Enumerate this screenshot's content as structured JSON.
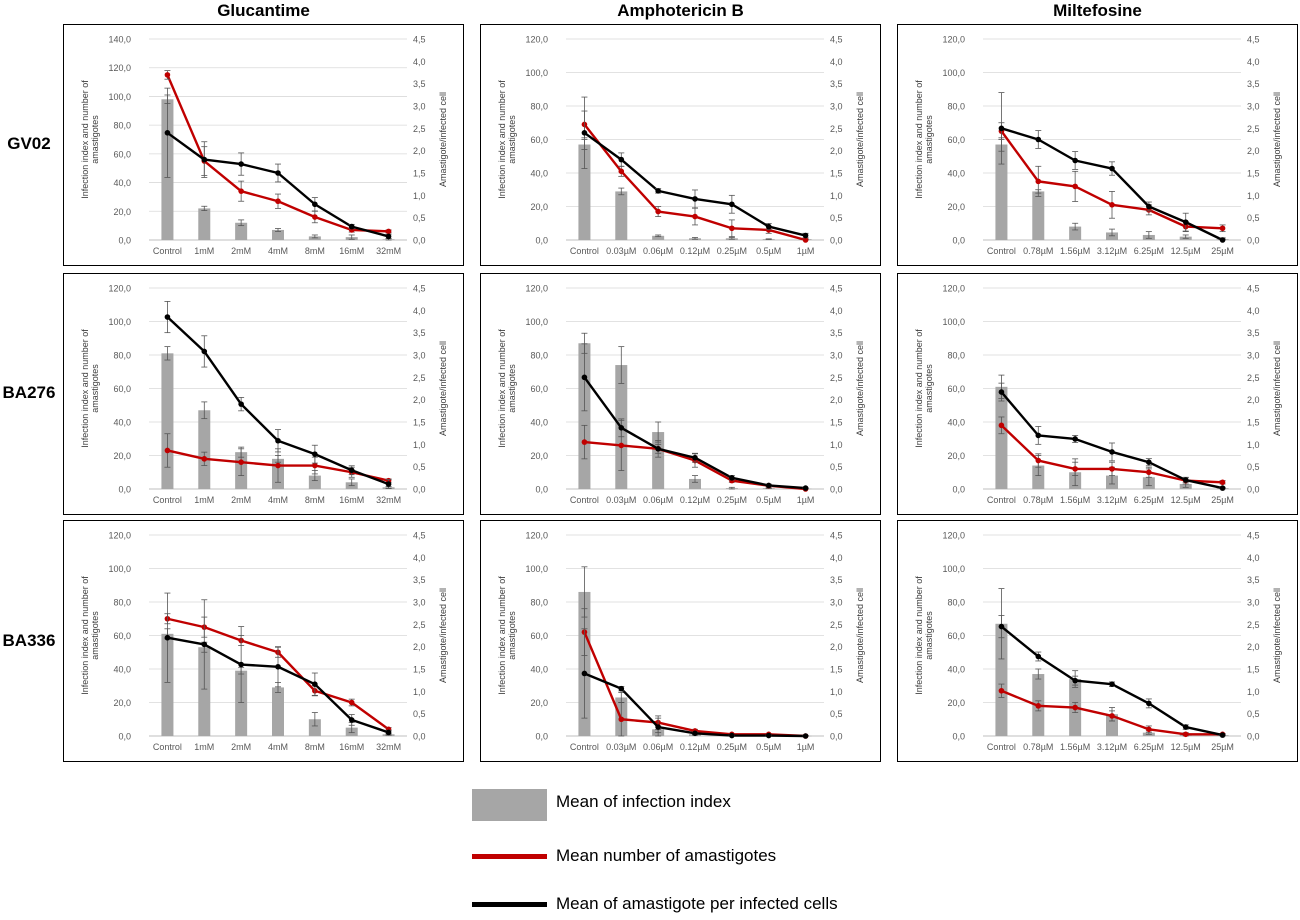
{
  "columns": [
    "Glucantime",
    "Amphotericin B",
    "Miltefosine"
  ],
  "rows": [
    "GV02",
    "BA276",
    "BA336"
  ],
  "axis_labels": {
    "left_line1": "Infection index and number of",
    "left_line2": "amastigotes",
    "right": "Amastigote/infected cell"
  },
  "left_ticks": [
    "0,0",
    "20,0",
    "40,0",
    "60,0",
    "80,0",
    "100,0",
    "120,0",
    "140,0"
  ],
  "right_ticks": [
    "0,0",
    "0,5",
    "1,0",
    "1,5",
    "2,0",
    "2,5",
    "3,0",
    "3,5",
    "4,0",
    "4,5"
  ],
  "legend": {
    "infection_index": "Mean of infection index",
    "amastigotes": "Mean number of amastigotes",
    "per_cell": "Mean of amastigote per infected cells"
  },
  "colors": {
    "bar": "#a6a6a6",
    "red": "#c00000",
    "black": "#000000",
    "grid": "#d9d9d9",
    "tick_text": "#595959"
  },
  "chart_data": [
    {
      "type": "bar",
      "row": "GV02",
      "column": "Glucantime",
      "categories": [
        "Control",
        "1mM",
        "2mM",
        "4mM",
        "8mM",
        "16mM",
        "32mM"
      ],
      "ylim": [
        0,
        140
      ],
      "y2lim": [
        0,
        4.5
      ],
      "series": [
        {
          "name": "Mean of infection index",
          "kind": "bar",
          "axis": "left",
          "values": [
            98,
            22,
            12,
            7,
            2.5,
            2,
            0.5
          ],
          "errors": [
            3,
            1.5,
            2,
            1,
            1,
            1.5,
            0.5
          ]
        },
        {
          "name": "Mean number of amastigotes",
          "kind": "line",
          "axis": "left",
          "values": [
            115,
            55,
            34,
            27,
            16,
            7,
            6
          ],
          "errors": [
            3,
            10,
            7,
            5,
            4,
            1.5,
            1
          ]
        },
        {
          "name": "Mean of amastigote per infected cells",
          "kind": "line",
          "axis": "right",
          "values": [
            2.4,
            1.8,
            1.7,
            1.5,
            0.8,
            0.3,
            0.08
          ],
          "errors": [
            1,
            0.4,
            0.25,
            0.2,
            0.15,
            0.05,
            0.05
          ]
        }
      ]
    },
    {
      "type": "bar",
      "row": "GV02",
      "column": "Amphotericin B",
      "categories": [
        "Control",
        "0.03µM",
        "0.06µM",
        "0.12µM",
        "0.25µM",
        "0.5µM",
        "1µM"
      ],
      "ylim": [
        0,
        120
      ],
      "y2lim": [
        0,
        4.5
      ],
      "series": [
        {
          "name": "Mean of infection index",
          "kind": "bar",
          "axis": "left",
          "values": [
            57,
            29,
            2.5,
            1,
            1,
            0.5,
            0.5
          ],
          "errors": [
            3,
            2,
            0.5,
            0.5,
            0.5,
            0.2,
            0.2
          ]
        },
        {
          "name": "Mean number of amastigotes",
          "kind": "line",
          "axis": "left",
          "values": [
            69,
            41,
            17,
            14,
            7,
            6,
            0
          ],
          "errors": [
            8,
            3,
            3,
            5,
            5,
            2,
            0.5
          ]
        },
        {
          "name": "Mean of amastigote per infected cells",
          "kind": "line",
          "axis": "right",
          "values": [
            2.4,
            1.8,
            1.1,
            0.92,
            0.8,
            0.3,
            0.1
          ],
          "errors": [
            0.8,
            0.15,
            0.05,
            0.2,
            0.2,
            0.07,
            0.05
          ]
        }
      ]
    },
    {
      "type": "bar",
      "row": "GV02",
      "column": "Miltefosine",
      "categories": [
        "Control",
        "0.78µM",
        "1.56µM",
        "3.12µM",
        "6.25µM",
        "12.5µM",
        "25µM"
      ],
      "ylim": [
        0,
        120
      ],
      "y2lim": [
        0,
        4.5
      ],
      "series": [
        {
          "name": "Mean of infection index",
          "kind": "bar",
          "axis": "left",
          "values": [
            57,
            29,
            8,
            4.5,
            3,
            2,
            0.5
          ],
          "errors": [
            4,
            1,
            2,
            2,
            2,
            1,
            0.2
          ]
        },
        {
          "name": "Mean number of amastigotes",
          "kind": "line",
          "axis": "left",
          "values": [
            65,
            35,
            32,
            21,
            18,
            8,
            7
          ],
          "errors": [
            5,
            9,
            9,
            8,
            3,
            3,
            2
          ]
        },
        {
          "name": "Mean of amastigote per infected cells",
          "kind": "line",
          "axis": "right",
          "values": [
            2.5,
            2.25,
            1.78,
            1.6,
            0.75,
            0.4,
            0
          ],
          "errors": [
            0.8,
            0.2,
            0.2,
            0.15,
            0.1,
            0.2,
            0.05
          ]
        }
      ]
    },
    {
      "type": "bar",
      "row": "BA276",
      "column": "Glucantime",
      "categories": [
        "Control",
        "1mM",
        "2mM",
        "4mM",
        "8mM",
        "16mM",
        "32mM"
      ],
      "ylim": [
        0,
        120
      ],
      "y2lim": [
        0,
        4.5
      ],
      "series": [
        {
          "name": "Mean of infection index",
          "kind": "bar",
          "axis": "left",
          "values": [
            81,
            47,
            22,
            18,
            8,
            4,
            1
          ],
          "errors": [
            4,
            5,
            3,
            2,
            3,
            2,
            0.5
          ]
        },
        {
          "name": "Mean number of amastigotes",
          "kind": "line",
          "axis": "left",
          "values": [
            23,
            18,
            16,
            14,
            14,
            10,
            5
          ],
          "errors": [
            10,
            4,
            8,
            10,
            5,
            3,
            1
          ]
        },
        {
          "name": "Mean of amastigote per infected cells",
          "kind": "line",
          "axis": "right",
          "values": [
            3.85,
            3.08,
            1.9,
            1.08,
            0.78,
            0.42,
            0.11
          ],
          "errors": [
            0.35,
            0.35,
            0.15,
            0.25,
            0.2,
            0.1,
            0.1
          ]
        }
      ]
    },
    {
      "type": "bar",
      "row": "BA276",
      "column": "Amphotericin B",
      "categories": [
        "Control",
        "0.03µM",
        "0.06µM",
        "0.12µM",
        "0.25µM",
        "0.5µM",
        "1µM"
      ],
      "ylim": [
        0,
        120
      ],
      "y2lim": [
        0,
        4.5
      ],
      "series": [
        {
          "name": "Mean of infection index",
          "kind": "bar",
          "axis": "left",
          "values": [
            87,
            74,
            34,
            6,
            0.5,
            0.5,
            0.2
          ],
          "errors": [
            6,
            11,
            6,
            2,
            0.5,
            0.2,
            0.1
          ]
        },
        {
          "name": "Mean number of amastigotes",
          "kind": "line",
          "axis": "left",
          "values": [
            28,
            26,
            24,
            17,
            5,
            2,
            0
          ],
          "errors": [
            10,
            15,
            5,
            4,
            1,
            0.5,
            0.2
          ]
        },
        {
          "name": "Mean of amastigote per infected cells",
          "kind": "line",
          "axis": "right",
          "values": [
            2.5,
            1.37,
            0.9,
            0.7,
            0.25,
            0.08,
            0.02
          ],
          "errors": [
            0.75,
            0.2,
            0.1,
            0.1,
            0.05,
            0.03,
            0.01
          ]
        }
      ]
    },
    {
      "type": "bar",
      "row": "BA276",
      "column": "Miltefosine",
      "categories": [
        "Control",
        "0.78µM",
        "1.56µM",
        "3.12µM",
        "6.25µM",
        "12.5µM",
        "25µM"
      ],
      "ylim": [
        0,
        120
      ],
      "y2lim": [
        0,
        4.5
      ],
      "series": [
        {
          "name": "Mean of infection index",
          "kind": "bar",
          "axis": "left",
          "values": [
            61,
            14,
            10,
            8,
            7,
            3,
            0.5
          ],
          "errors": [
            7,
            6,
            8,
            5,
            5,
            2,
            0.2
          ]
        },
        {
          "name": "Mean number of amastigotes",
          "kind": "line",
          "axis": "left",
          "values": [
            38,
            17,
            12,
            12,
            10,
            5,
            4
          ],
          "errors": [
            5,
            4,
            4,
            4,
            3,
            2,
            1
          ]
        },
        {
          "name": "Mean of amastigote per infected cells",
          "kind": "line",
          "axis": "right",
          "values": [
            2.17,
            1.2,
            1.12,
            0.83,
            0.6,
            0.2,
            0.02
          ],
          "errors": [
            0.2,
            0.2,
            0.08,
            0.2,
            0.08,
            0.05,
            0.02
          ]
        }
      ]
    },
    {
      "type": "bar",
      "row": "BA336",
      "column": "Glucantime",
      "categories": [
        "Control",
        "1mM",
        "2mM",
        "4mM",
        "8mM",
        "16mM",
        "32mM"
      ],
      "ylim": [
        0,
        120
      ],
      "y2lim": [
        0,
        4.5
      ],
      "series": [
        {
          "name": "Mean of infection index",
          "kind": "bar",
          "axis": "left",
          "values": [
            61,
            53,
            39,
            29,
            10,
            5,
            1
          ],
          "errors": [
            3,
            3,
            2,
            3,
            4,
            3,
            0.5
          ]
        },
        {
          "name": "Mean number of amastigotes",
          "kind": "line",
          "axis": "left",
          "values": [
            70,
            65,
            57,
            50,
            27,
            20,
            4
          ],
          "errors": [
            3,
            6,
            3,
            3,
            3,
            2,
            1
          ]
        },
        {
          "name": "Mean of amastigote per infected cells",
          "kind": "line",
          "axis": "right",
          "values": [
            2.2,
            2.05,
            1.6,
            1.55,
            1.16,
            0.36,
            0.08
          ],
          "errors": [
            1,
            1,
            0.85,
            0.45,
            0.25,
            0.12,
            0.05
          ]
        }
      ]
    },
    {
      "type": "bar",
      "row": "BA336",
      "column": "Amphotericin B",
      "categories": [
        "Control",
        "0.03µM",
        "0.06µM",
        "0.12µM",
        "0.25µM",
        "0.5µM",
        "1µM"
      ],
      "ylim": [
        0,
        120
      ],
      "y2lim": [
        0,
        4.5
      ],
      "series": [
        {
          "name": "Mean of infection index",
          "kind": "bar",
          "axis": "left",
          "values": [
            86,
            23,
            4,
            1,
            0.5,
            0.2,
            0.1
          ],
          "errors": [
            15,
            3,
            2,
            0.5,
            0.2,
            0.1,
            0.1
          ]
        },
        {
          "name": "Mean number of amastigotes",
          "kind": "line",
          "axis": "left",
          "values": [
            62,
            10,
            8,
            3,
            1,
            1,
            0
          ],
          "errors": [
            14,
            10,
            4,
            1,
            0.5,
            0.5,
            0.2
          ]
        },
        {
          "name": "Mean of amastigote per infected cells",
          "kind": "line",
          "axis": "right",
          "values": [
            1.4,
            1.06,
            0.2,
            0.06,
            0.01,
            0.01,
            0
          ],
          "errors": [
            1,
            0.05,
            0.2,
            0.03,
            0.01,
            0.01,
            0.01
          ]
        }
      ]
    },
    {
      "type": "bar",
      "row": "BA336",
      "column": "Miltefosine",
      "categories": [
        "Control",
        "0.78µM",
        "1.56µM",
        "3.12µM",
        "6.25µM",
        "12.5µM",
        "25µM"
      ],
      "ylim": [
        0,
        120
      ],
      "y2lim": [
        0,
        4.5
      ],
      "series": [
        {
          "name": "Mean of infection index",
          "kind": "bar",
          "axis": "left",
          "values": [
            67,
            37,
            34,
            13,
            2,
            1,
            0.5
          ],
          "errors": [
            21,
            3,
            5,
            4,
            1,
            0.5,
            0.2
          ]
        },
        {
          "name": "Mean number of amastigotes",
          "kind": "line",
          "axis": "left",
          "values": [
            27,
            18,
            17,
            12,
            4,
            1,
            1
          ],
          "errors": [
            4,
            3,
            3,
            3,
            2,
            1,
            0.5
          ]
        },
        {
          "name": "Mean of amastigote per infected cells",
          "kind": "line",
          "axis": "right",
          "values": [
            2.45,
            1.78,
            1.24,
            1.16,
            0.73,
            0.2,
            0.02
          ],
          "errors": [
            0.25,
            0.1,
            0.1,
            0.05,
            0.1,
            0.05,
            0.02
          ]
        }
      ]
    }
  ]
}
